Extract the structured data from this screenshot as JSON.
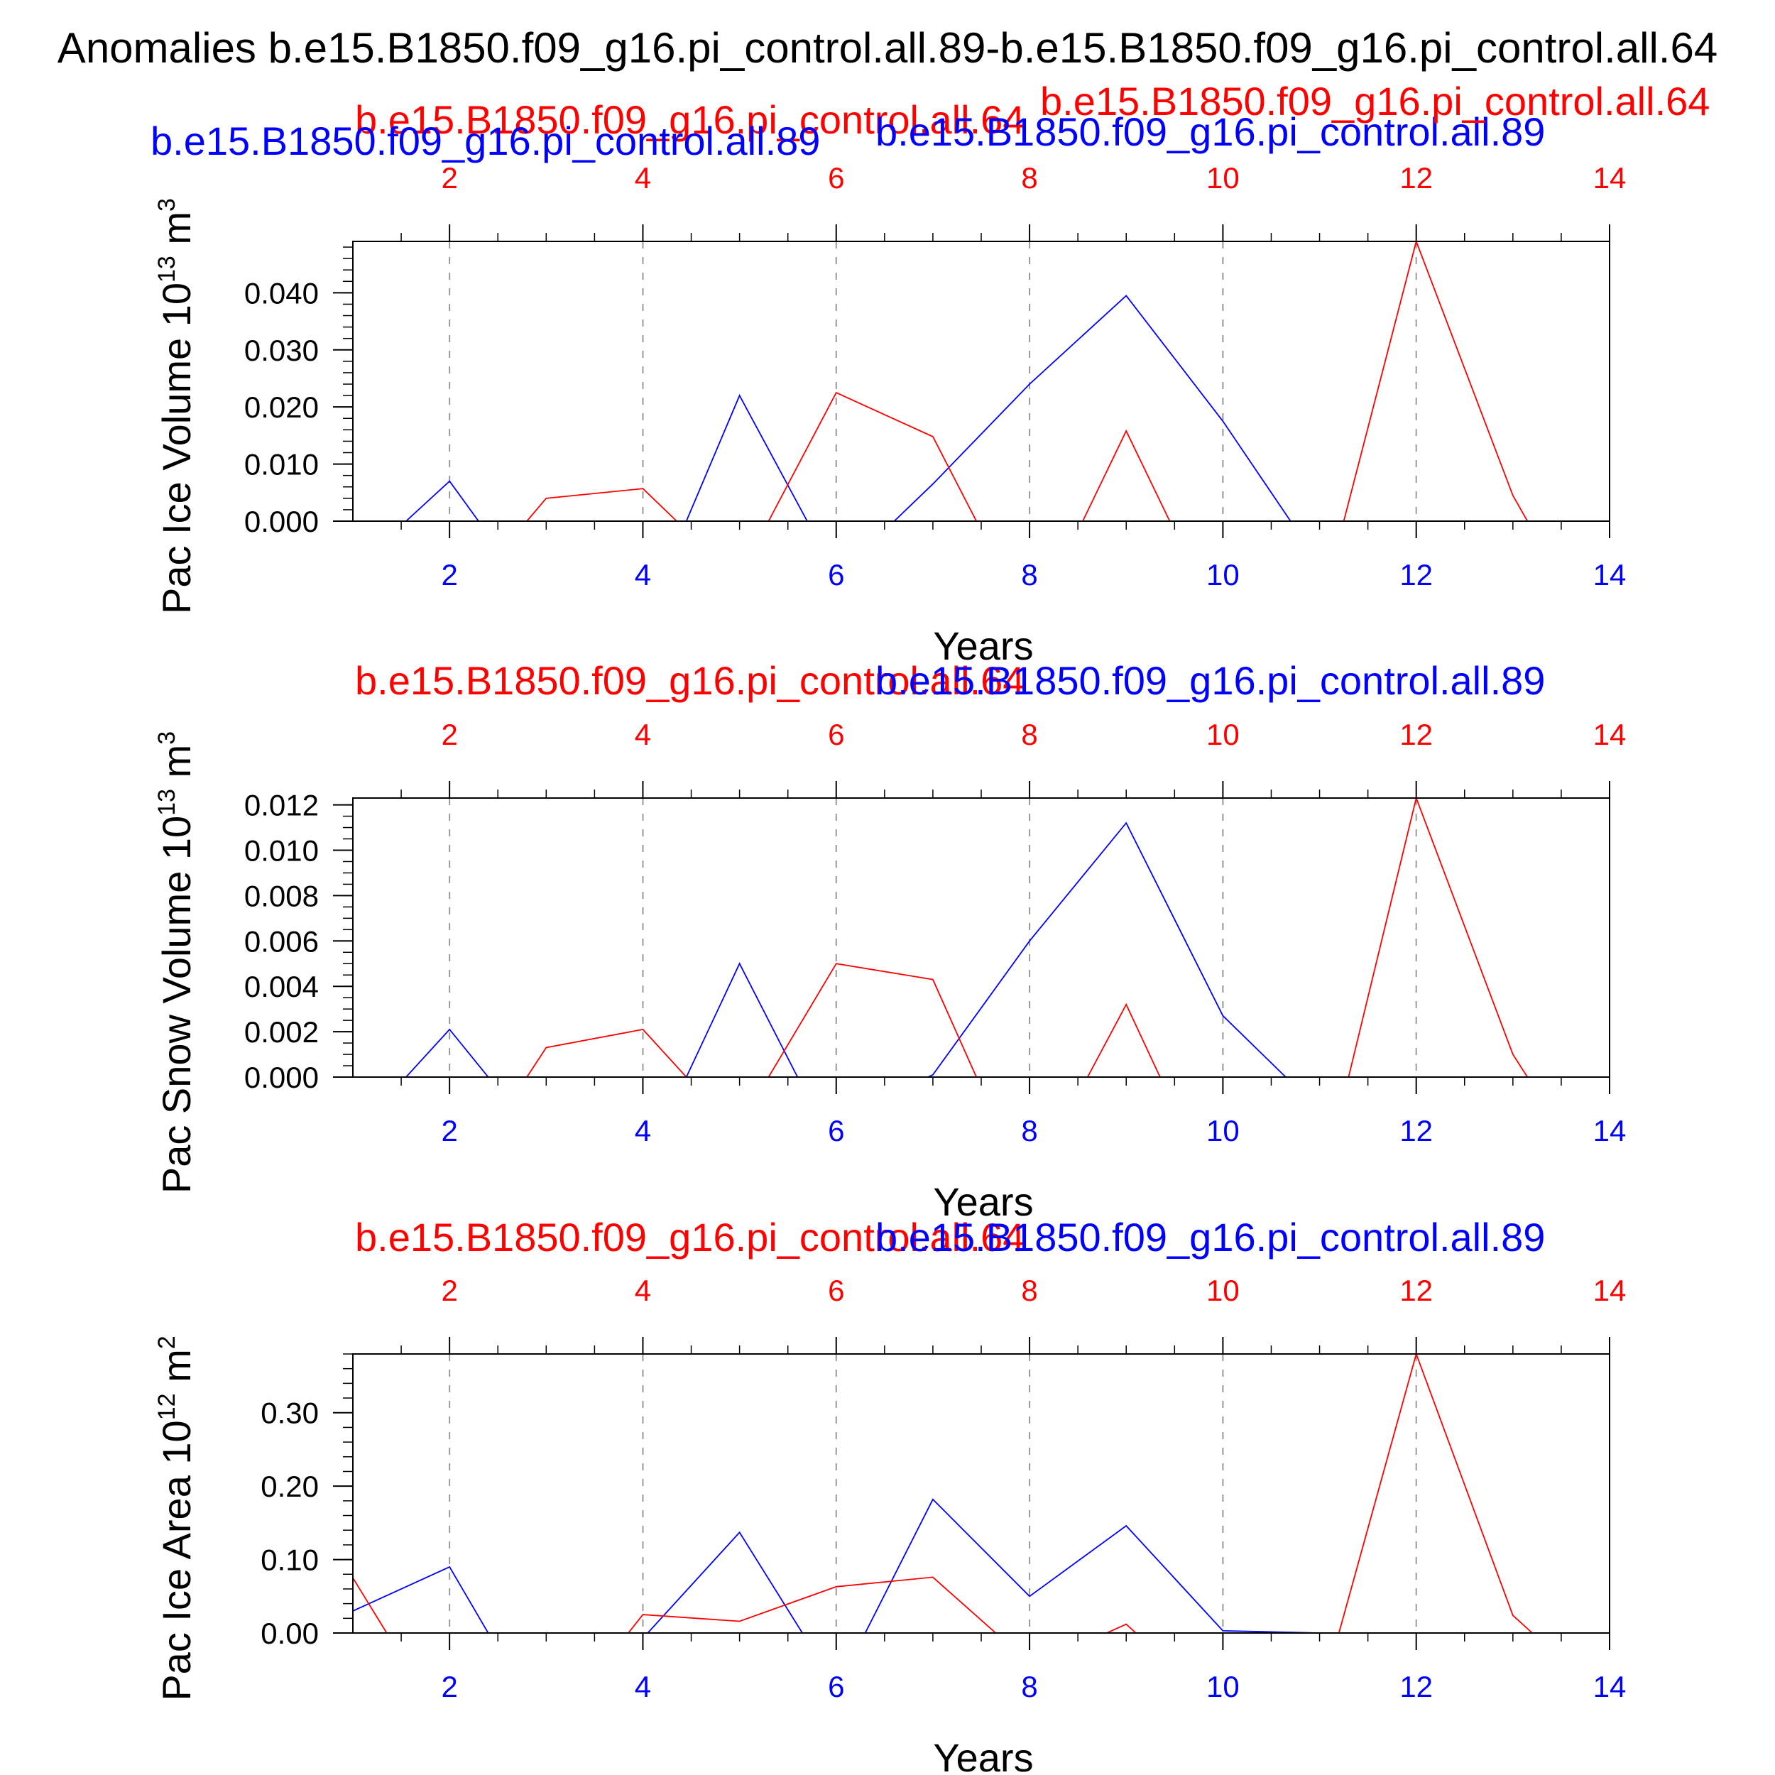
{
  "figure": {
    "title": "Anomalies b.e15.B1850.f09_g16.pi_control.all.89-b.e15.B1850.f09_g16.pi_control.all.64"
  },
  "chart_data": [
    {
      "type": "line",
      "ylabel": "Pac Ice Volume 10",
      "ylabel_exp": "13",
      "ylabel_unit": " m",
      "ylabel_unit_exp": "3",
      "xlabel": "Years",
      "xlim": [
        1,
        14
      ],
      "ylim": [
        0,
        0.049
      ],
      "x_ticks": [
        2,
        4,
        6,
        8,
        10,
        12,
        14
      ],
      "x_tick_labels": [
        "2",
        "4",
        "6",
        "8",
        "10",
        "12",
        "14"
      ],
      "y_ticks": [
        0,
        0.01,
        0.02,
        0.03,
        0.04
      ],
      "y_tick_labels": [
        "0.000",
        "0.010",
        "0.020",
        "0.030",
        "0.040"
      ],
      "y_minor_step": 0.002,
      "top_labels": [
        {
          "text": "b.e15.B1850.f09_g16.pi_control.all.64",
          "color": "#ff0000"
        },
        {
          "text": "b.e15.B1850.f09_g16.pi_control.all.89",
          "color": "#0000ff"
        },
        {
          "text": "b.e15.B1850.f09_g16.pi_control.all.89",
          "color": "#0000ff"
        },
        {
          "text": "b.e15.B1850.f09_g16.pi_control.all.64",
          "color": "#ff0000"
        }
      ],
      "series": [
        {
          "color": "#0000ff",
          "x": [
            1,
            1.55,
            2,
            2.3,
            4.45,
            5,
            5.7,
            6.6,
            7,
            8,
            9,
            10,
            10.7,
            14
          ],
          "y": [
            0,
            0,
            0.007,
            0,
            0,
            0.022,
            0,
            0,
            0.0065,
            0.024,
            0.0395,
            0.0175,
            0,
            0
          ]
        },
        {
          "color": "#ff0000",
          "x": [
            1,
            2.8,
            3,
            4,
            4.35,
            5.3,
            6,
            7,
            7.45,
            8.55,
            9,
            9.45,
            11.25,
            12,
            13,
            13.15,
            14
          ],
          "y": [
            0,
            0,
            0.004,
            0.0057,
            0,
            0,
            0.0225,
            0.0148,
            0,
            0,
            0.0158,
            0,
            0,
            0.049,
            0.0045,
            0,
            0
          ]
        }
      ]
    },
    {
      "type": "line",
      "ylabel": "Pac Snow Volume 10",
      "ylabel_exp": "13",
      "ylabel_unit": " m",
      "ylabel_unit_exp": "3",
      "xlabel": "Years",
      "xlim": [
        1,
        14
      ],
      "ylim": [
        0,
        0.0123
      ],
      "x_ticks": [
        2,
        4,
        6,
        8,
        10,
        12,
        14
      ],
      "x_tick_labels": [
        "2",
        "4",
        "6",
        "8",
        "10",
        "12",
        "14"
      ],
      "y_ticks": [
        0,
        0.002,
        0.004,
        0.006,
        0.008,
        0.01,
        0.012
      ],
      "y_tick_labels": [
        "0.000",
        "0.002",
        "0.004",
        "0.006",
        "0.008",
        "0.010",
        "0.012"
      ],
      "y_minor_step": 0.0005,
      "top_labels": [
        {
          "text": "b.e15.B1850.f09_g16.pi_control.all.64",
          "color": "#ff0000"
        },
        {
          "text": "b.e15.B1850.f09_g16.pi_control.all.89",
          "color": "#0000ff"
        }
      ],
      "series": [
        {
          "color": "#0000ff",
          "x": [
            1,
            1.55,
            2,
            2.4,
            4.45,
            5,
            5.6,
            6.95,
            7,
            8,
            9,
            10,
            10.65,
            14
          ],
          "y": [
            0,
            0,
            0.0021,
            0,
            0,
            0.005,
            0,
            0,
            0.0001,
            0.006,
            0.0112,
            0.0027,
            0,
            0
          ]
        },
        {
          "color": "#ff0000",
          "x": [
            1,
            2.8,
            3,
            4,
            4.45,
            5.3,
            6,
            7,
            7.45,
            8.6,
            9,
            9.35,
            11.3,
            12,
            13,
            13.15,
            14
          ],
          "y": [
            0,
            0,
            0.0013,
            0.0021,
            0,
            0,
            0.005,
            0.0043,
            0,
            0,
            0.0032,
            0,
            0,
            0.0123,
            0.001,
            0,
            0
          ]
        }
      ]
    },
    {
      "type": "line",
      "ylabel": "Pac Ice Area 10",
      "ylabel_exp": "12",
      "ylabel_unit": " m",
      "ylabel_unit_exp": "2",
      "xlabel": "Years",
      "xlim": [
        1,
        14
      ],
      "ylim": [
        0,
        0.38
      ],
      "x_ticks": [
        2,
        4,
        6,
        8,
        10,
        12,
        14
      ],
      "x_tick_labels": [
        "2",
        "4",
        "6",
        "8",
        "10",
        "12",
        "14"
      ],
      "y_ticks": [
        0,
        0.1,
        0.2,
        0.3
      ],
      "y_tick_labels": [
        "0.00",
        "0.10",
        "0.20",
        "0.30"
      ],
      "y_minor_step": 0.02,
      "top_labels": [
        {
          "text": "b.e15.B1850.f09_g16.pi_control.all.64",
          "color": "#ff0000"
        },
        {
          "text": "b.e15.B1850.f09_g16.pi_control.all.89",
          "color": "#0000ff"
        }
      ],
      "series": [
        {
          "color": "#0000ff",
          "x": [
            1,
            2,
            2.4,
            4.05,
            5,
            5.65,
            6.3,
            7,
            8,
            9,
            10,
            11,
            14
          ],
          "y": [
            0.03,
            0.09,
            0,
            0,
            0.137,
            0,
            0,
            0.182,
            0.05,
            0.146,
            0.003,
            0,
            0
          ]
        },
        {
          "color": "#ff0000",
          "x": [
            1,
            1.35,
            3.85,
            4,
            5,
            6,
            7,
            7.65,
            8.8,
            9,
            9.1,
            11.2,
            12,
            13,
            13.2,
            14
          ],
          "y": [
            0.075,
            0,
            0,
            0.025,
            0.016,
            0.063,
            0.076,
            0,
            0,
            0.012,
            0,
            0,
            0.38,
            0.024,
            0,
            0
          ]
        }
      ]
    }
  ]
}
